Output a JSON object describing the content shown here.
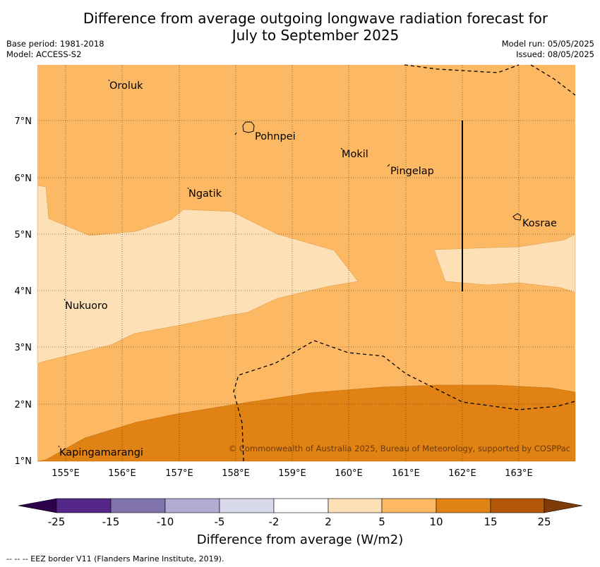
{
  "title_line1": "Difference from average outgoing longwave radiation forecast for",
  "title_line2": "July to September 2025",
  "base_period": "Base period: 1981-2018",
  "model": "Model: ACCESS-S2",
  "model_run": "Model run: 05/05/2025",
  "issued": "Issued: 08/05/2025",
  "copyright": "© Commonwealth of Australia 2025, Bureau of Meteorology, supported by COSPPac",
  "places": {
    "oroluk": "Oroluk",
    "pohnpei": "Pohnpei",
    "mokil": "Mokil",
    "pingelap": "Pingelap",
    "ngatik": "Ngatik",
    "kosrae": "Kosrae",
    "nukuoro": "Nukuoro",
    "kapingamarangi": "Kapingamarangi"
  },
  "lat_ticks": [
    "7°N",
    "6°N",
    "5°N",
    "4°N",
    "3°N",
    "2°N",
    "1°N"
  ],
  "lon_ticks": [
    "155°E",
    "156°E",
    "157°E",
    "158°E",
    "159°E",
    "160°E",
    "161°E",
    "162°E",
    "163°E"
  ],
  "colorbar": {
    "title": "Difference from average (W/m2)",
    "labels": [
      "-25",
      "-15",
      "-10",
      "-5",
      "-2",
      "2",
      "5",
      "10",
      "15",
      "25"
    ],
    "colors": [
      "#2d004b",
      "#542788",
      "#8073ac",
      "#b2abd2",
      "#d8daeb",
      "#ffffff",
      "#fee0b6",
      "#fdb863",
      "#e08214",
      "#b35806",
      "#7f3b08"
    ]
  },
  "footnote": "--  --  -- EEZ border V11 (Flanders Marine Institute, 2019)."
}
